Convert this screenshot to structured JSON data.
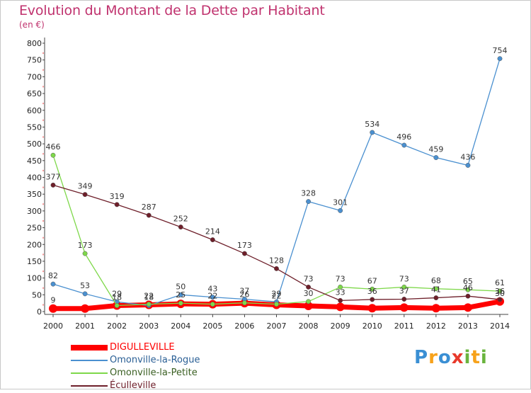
{
  "header": {
    "title": "Evolution du Montant de la Dette par Habitant",
    "unit": "(en €)"
  },
  "logo": {
    "letters": [
      "P",
      "r",
      "o",
      "x",
      "i",
      "t",
      "i"
    ],
    "colors": [
      "#3a8fd4",
      "#f7a21b",
      "#3a8fd4",
      "#e8392b",
      "#6ab43e",
      "#f7a21b",
      "#6ab43e"
    ]
  },
  "chart_data": {
    "type": "line",
    "title": "Evolution du Montant de la Dette par Habitant",
    "subtitle": "(en €)",
    "xlabel": "",
    "ylabel": "",
    "x": [
      2000,
      2001,
      2002,
      2003,
      2004,
      2005,
      2006,
      2007,
      2008,
      2009,
      2010,
      2011,
      2012,
      2013,
      2014
    ],
    "y_ticks": [
      0,
      50,
      100,
      150,
      200,
      250,
      300,
      350,
      400,
      450,
      500,
      550,
      600,
      650,
      700,
      750,
      800
    ],
    "ylim": [
      0,
      800
    ],
    "grid": false,
    "legend_position": "bottom-left",
    "series": [
      {
        "name": "DIGULLEVILLE",
        "color": "#ff0000",
        "values": [
          9,
          9,
          18,
          20,
          23,
          22,
          25,
          20,
          17,
          14,
          10,
          12,
          10,
          12,
          30
        ],
        "labels": [
          "9",
          "",
          "",
          "",
          "",
          "",
          "",
          "",
          "",
          "",
          "",
          "",
          "",
          "",
          "30"
        ]
      },
      {
        "name": "Omonville-la-Rogue",
        "color": "#4a90d0",
        "values": [
          82,
          53,
          29,
          18,
          50,
          43,
          37,
          29,
          328,
          301,
          534,
          496,
          459,
          436,
          754
        ],
        "labels": [
          "82",
          "53",
          "29",
          "18",
          "50",
          "43",
          "37",
          "29",
          "328",
          "301",
          "534",
          "496",
          "459",
          "436",
          "754"
        ]
      },
      {
        "name": "Omonville-la-Petite",
        "color": "#7ed84a",
        "values": [
          466,
          173,
          18,
          22,
          25,
          22,
          26,
          22,
          30,
          73,
          67,
          73,
          68,
          65,
          61
        ],
        "labels": [
          "466",
          "173",
          "18",
          "22",
          "25",
          "22",
          "26",
          "22",
          "30",
          "73",
          "67",
          "73",
          "68",
          "65",
          "61"
        ]
      },
      {
        "name": "Éculleville",
        "color": "#6e1f2a",
        "values": [
          377,
          349,
          319,
          287,
          252,
          214,
          173,
          128,
          73,
          33,
          36,
          37,
          41,
          46,
          36
        ],
        "labels": [
          "377",
          "349",
          "319",
          "287",
          "252",
          "214",
          "173",
          "128",
          "73",
          "33",
          "36",
          "37",
          "41",
          "46",
          "36"
        ]
      }
    ]
  }
}
